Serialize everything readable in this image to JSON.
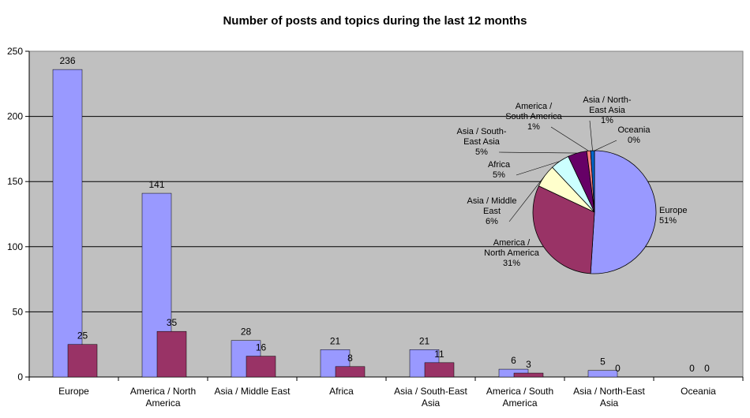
{
  "chart_data": [
    {
      "type": "bar",
      "title": "Number of posts and topics during the last 12 months",
      "categories": [
        [
          "Europe"
        ],
        [
          "America / North",
          "America"
        ],
        [
          "Asia / Middle East"
        ],
        [
          "Africa"
        ],
        [
          "Asia / South-East",
          "Asia"
        ],
        [
          "America / South",
          "America"
        ],
        [
          "Asia / North-East",
          "Asia"
        ],
        [
          "Oceania"
        ]
      ],
      "series": [
        {
          "values": [
            236,
            141,
            28,
            21,
            21,
            6,
            5,
            0
          ],
          "color": "#9999ff"
        },
        {
          "values": [
            25,
            35,
            16,
            8,
            11,
            3,
            0,
            0
          ],
          "color": "#993366"
        }
      ],
      "ylim": [
        0,
        250
      ],
      "yticks": [
        0,
        50,
        100,
        150,
        200,
        250
      ],
      "grid": true,
      "plot_background": "#c0c0c0"
    },
    {
      "type": "pie",
      "slices": [
        {
          "label": [
            "Europe",
            "51%"
          ],
          "value": 51,
          "color": "#9999ff"
        },
        {
          "label": [
            "America /",
            "North America",
            "31%"
          ],
          "value": 31,
          "color": "#993366"
        },
        {
          "label": [
            "Asia / Middle",
            "East",
            "6%"
          ],
          "value": 6,
          "color": "#ffffcc"
        },
        {
          "label": [
            "Africa",
            "5%"
          ],
          "value": 5,
          "color": "#ccffff"
        },
        {
          "label": [
            "Asia / South-",
            "East Asia",
            "5%"
          ],
          "value": 5,
          "color": "#660066"
        },
        {
          "label": [
            "America /",
            "South America",
            "1%"
          ],
          "value": 1,
          "color": "#ff8080"
        },
        {
          "label": [
            "Asia / North-",
            "East Asia",
            "1%"
          ],
          "value": 1,
          "color": "#0066cc"
        },
        {
          "label": [
            "Oceania",
            "0%"
          ],
          "value": 0,
          "color": "#ccccff"
        }
      ]
    }
  ]
}
